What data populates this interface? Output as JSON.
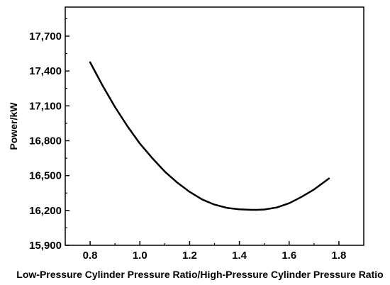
{
  "chart_data": {
    "type": "line",
    "title": "",
    "xlabel": "Low-Pressure Cylinder Pressure Ratio/High-Pressure Cylinder Pressure Ratio",
    "ylabel": "Power/kW",
    "xlim": [
      0.7,
      1.9
    ],
    "ylim": [
      15900,
      17950
    ],
    "x_ticks": [
      "0.8",
      "1.0",
      "1.2",
      "1.4",
      "1.6",
      "1.8"
    ],
    "y_ticks": [
      "15,900",
      "16,200",
      "16,500",
      "16,800",
      "17,100",
      "17,400",
      "17,700"
    ],
    "grid": false,
    "legend": "none",
    "series": [
      {
        "line_color": "#000000",
        "x": [
          0.8,
          0.85,
          0.9,
          0.95,
          1.0,
          1.05,
          1.1,
          1.15,
          1.2,
          1.25,
          1.3,
          1.35,
          1.4,
          1.45,
          1.47,
          1.5,
          1.55,
          1.6,
          1.65,
          1.7,
          1.76
        ],
        "y": [
          17475,
          17275,
          17090,
          16925,
          16775,
          16650,
          16535,
          16440,
          16360,
          16295,
          16250,
          16222,
          16210,
          16205,
          16205,
          16208,
          16225,
          16262,
          16317,
          16380,
          16475
        ]
      }
    ]
  }
}
